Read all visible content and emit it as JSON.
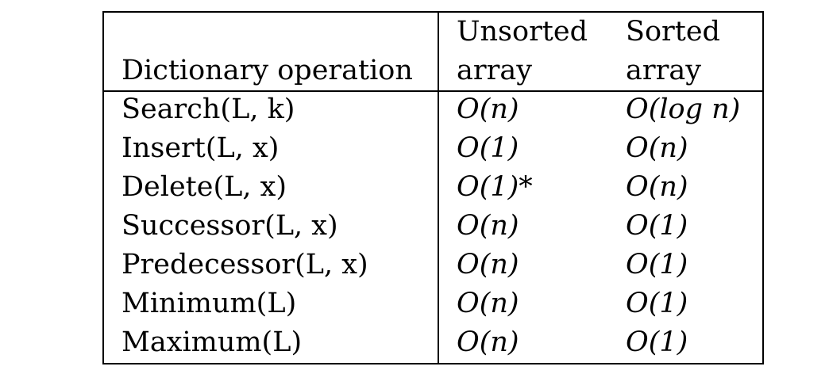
{
  "header": {
    "operation": "Dictionary operation",
    "unsorted_top": "Unsorted",
    "unsorted_bottom": "array",
    "sorted_top": "Sorted",
    "sorted_bottom": "array"
  },
  "rows": [
    {
      "operation": "Search(L, k)",
      "unsorted": "O(n)",
      "sorted": "O(log n)"
    },
    {
      "operation": "Insert(L, x)",
      "unsorted": "O(1)",
      "sorted": "O(n)"
    },
    {
      "operation": "Delete(L, x)",
      "unsorted": "O(1)*",
      "sorted": "O(n)"
    },
    {
      "operation": "Successor(L, x)",
      "unsorted": "O(n)",
      "sorted": "O(1)"
    },
    {
      "operation": "Predecessor(L, x)",
      "unsorted": "O(n)",
      "sorted": "O(1)"
    },
    {
      "operation": "Minimum(L)",
      "unsorted": "O(n)",
      "sorted": "O(1)"
    },
    {
      "operation": "Maximum(L)",
      "unsorted": "O(n)",
      "sorted": "O(1)"
    }
  ]
}
